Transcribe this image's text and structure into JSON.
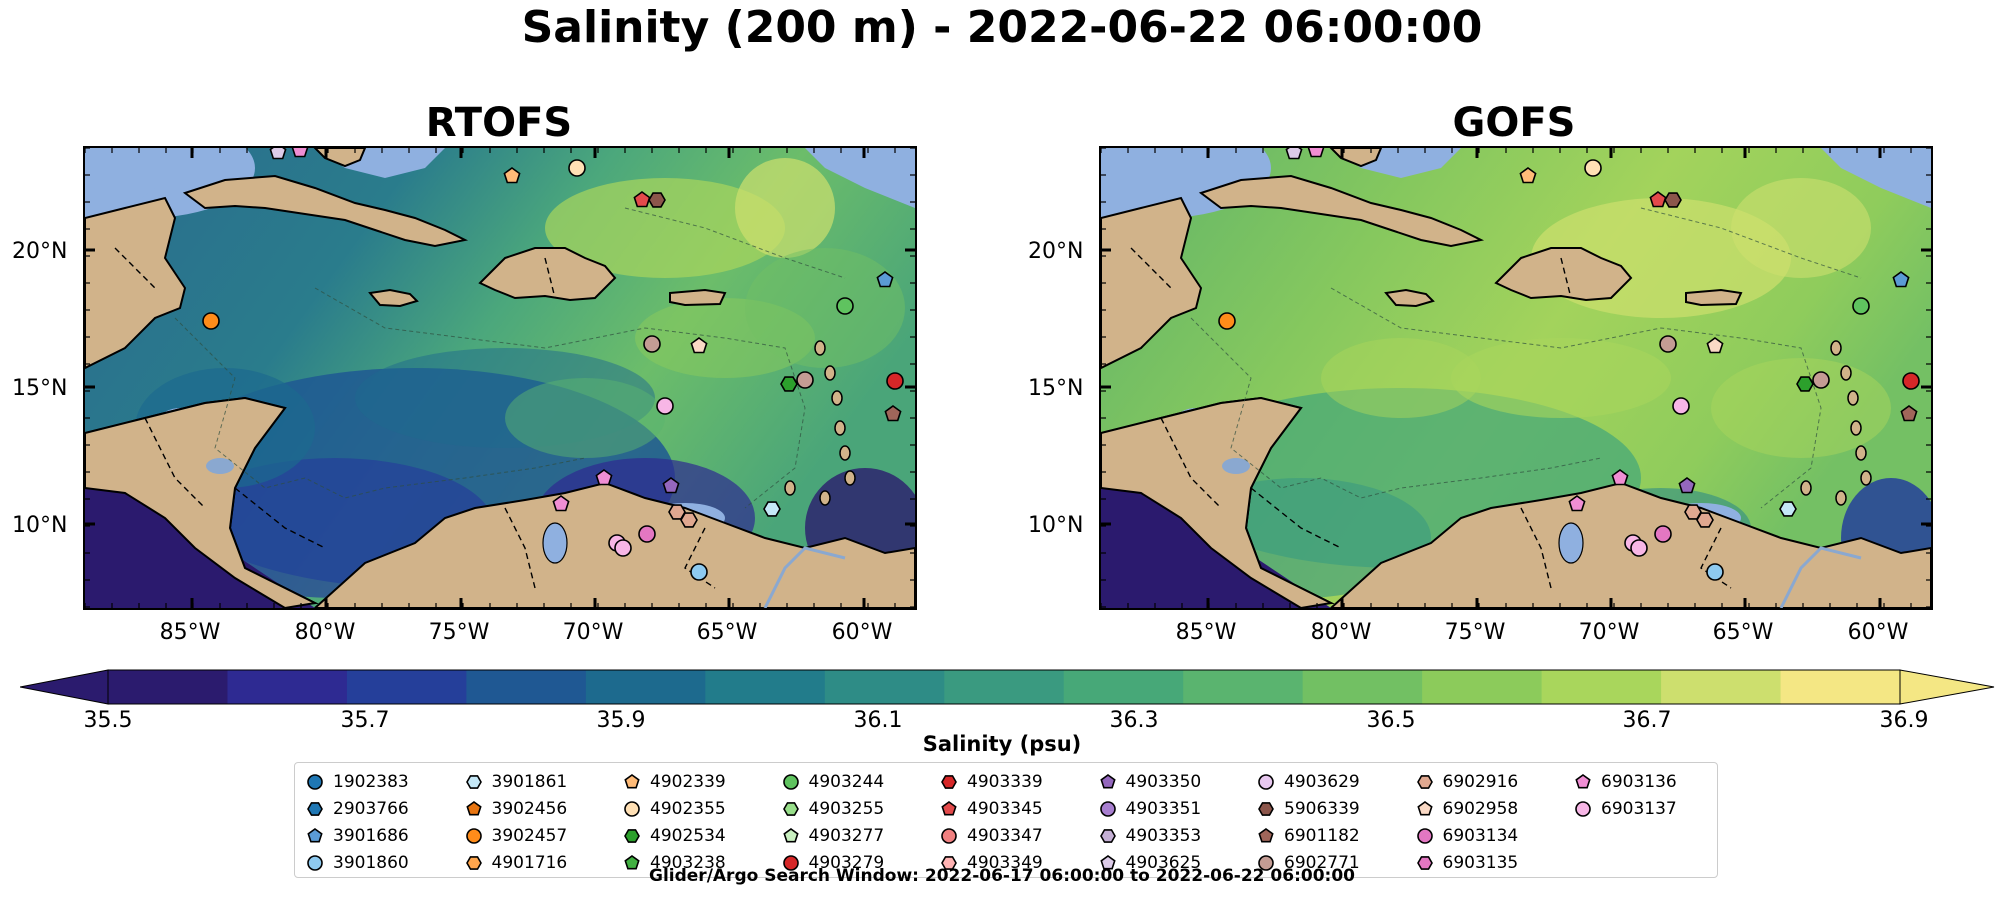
{
  "title": "Salinity (200 m) - 2022-06-22 06:00:00",
  "panels": [
    {
      "title": "RTOFS",
      "palette": "rtofs"
    },
    {
      "title": "GOFS",
      "palette": "gofs"
    }
  ],
  "lat_labels": [
    "20°N",
    "15°N",
    "10°N"
  ],
  "lon_labels": [
    "85°W",
    "80°W",
    "75°W",
    "70°W",
    "65°W",
    "60°W"
  ],
  "colorbar": {
    "label": "Salinity (psu)",
    "ticks": [
      "35.5",
      "35.7",
      "35.9",
      "36.1",
      "36.3",
      "36.5",
      "36.7",
      "36.9"
    ],
    "colors": [
      "#2b1b6e",
      "#2e2a92",
      "#253f9a",
      "#1f5893",
      "#1d6a8e",
      "#227c8b",
      "#2e8c86",
      "#3a9a80",
      "#47a878",
      "#5ab46f",
      "#72c063",
      "#8ccb5b",
      "#a9d65c",
      "#cddf6e",
      "#f4e784"
    ]
  },
  "legend": {
    "items": [
      {
        "id": "1902383",
        "color": "#1f77b4",
        "shape": "circle"
      },
      {
        "id": "2903766",
        "color": "#1f77b4",
        "shape": "hexagon"
      },
      {
        "id": "3901686",
        "color": "#5b9bd5",
        "shape": "pentagon"
      },
      {
        "id": "3901860",
        "color": "#8ecaf0",
        "shape": "circle"
      },
      {
        "id": "3901861",
        "color": "#c5e8f7",
        "shape": "hexagon"
      },
      {
        "id": "3902456",
        "color": "#e87511",
        "shape": "pentagon"
      },
      {
        "id": "3902457",
        "color": "#ff8c1a",
        "shape": "circle"
      },
      {
        "id": "4901716",
        "color": "#ffa64d",
        "shape": "hexagon"
      },
      {
        "id": "4902339",
        "color": "#ffbb78",
        "shape": "pentagon"
      },
      {
        "id": "4902355",
        "color": "#ffe0b5",
        "shape": "circle"
      },
      {
        "id": "4902534",
        "color": "#2ca02c",
        "shape": "hexagon"
      },
      {
        "id": "4903238",
        "color": "#41b041",
        "shape": "pentagon"
      },
      {
        "id": "4903244",
        "color": "#5fc35f",
        "shape": "circle"
      },
      {
        "id": "4903255",
        "color": "#98df8a",
        "shape": "hexagon"
      },
      {
        "id": "4903277",
        "color": "#c9f0c0",
        "shape": "pentagon"
      },
      {
        "id": "4903279",
        "color": "#d62728",
        "shape": "circle"
      },
      {
        "id": "4903339",
        "color": "#d62728",
        "shape": "hexagon"
      },
      {
        "id": "4903345",
        "color": "#e34a4b",
        "shape": "pentagon"
      },
      {
        "id": "4903347",
        "color": "#f08080",
        "shape": "circle"
      },
      {
        "id": "4903349",
        "color": "#ffb3b3",
        "shape": "hexagon"
      },
      {
        "id": "4903350",
        "color": "#9467bd",
        "shape": "pentagon"
      },
      {
        "id": "4903351",
        "color": "#a87fd0",
        "shape": "circle"
      },
      {
        "id": "4903353",
        "color": "#c5b0d5",
        "shape": "hexagon"
      },
      {
        "id": "4903625",
        "color": "#dccbe8",
        "shape": "pentagon"
      },
      {
        "id": "4903629",
        "color": "#e8c8f0",
        "shape": "circle"
      },
      {
        "id": "5906339",
        "color": "#8c564b",
        "shape": "hexagon"
      },
      {
        "id": "6901182",
        "color": "#a0665a",
        "shape": "pentagon"
      },
      {
        "id": "6902771",
        "color": "#c49c94",
        "shape": "circle"
      },
      {
        "id": "6902916",
        "color": "#e0a890",
        "shape": "hexagon"
      },
      {
        "id": "6902958",
        "color": "#fad9c5",
        "shape": "pentagon"
      },
      {
        "id": "6903134",
        "color": "#e377c2",
        "shape": "circle"
      },
      {
        "id": "6903135",
        "color": "#e377c2",
        "shape": "hexagon"
      },
      {
        "id": "6903136",
        "color": "#f08ed4",
        "shape": "pentagon"
      },
      {
        "id": "6903137",
        "color": "#f7b6e6",
        "shape": "circle"
      }
    ]
  },
  "footnote": "Glider/Argo Search Window: 2022-06-17 06:00:00 to 2022-06-22 06:00:00"
}
